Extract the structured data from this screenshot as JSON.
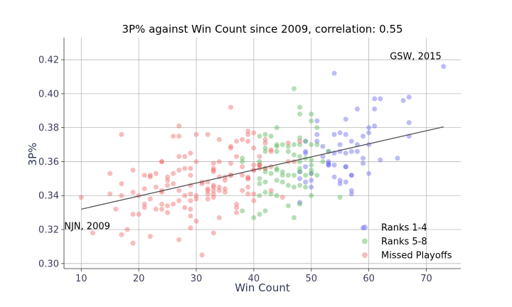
{
  "chart_data": {
    "type": "scatter",
    "title": "3P% against Win Count since 2009, correlation: 0.55",
    "xlabel": "Win Count",
    "ylabel": "3P%",
    "xlim": [
      7,
      76
    ],
    "ylim": [
      0.297,
      0.433
    ],
    "xticks": [
      10,
      20,
      30,
      40,
      50,
      60,
      70
    ],
    "yticks": [
      0.3,
      0.32,
      0.34,
      0.36,
      0.38,
      0.4,
      0.42
    ],
    "grid": true,
    "legend_position": "lower-right",
    "colors": {
      "ranks_1_4": "#6b6bf0",
      "ranks_5_8": "#5cb85c",
      "missed": "#f26b6b",
      "trend": "#555555"
    },
    "trendline": {
      "x": [
        10,
        73
      ],
      "y": [
        0.332,
        0.3805
      ]
    },
    "annotations": [
      {
        "text": "GSW, 2015",
        "x": 73,
        "y": 0.416
      },
      {
        "text": "NJN, 2009",
        "x": 10,
        "y": 0.339
      }
    ],
    "series": [
      {
        "name": "Ranks 1-4",
        "color": "#6b6bf0",
        "points": [
          [
            73,
            0.416
          ],
          [
            67,
            0.398
          ],
          [
            66,
            0.396
          ],
          [
            62,
            0.397
          ],
          [
            61,
            0.397
          ],
          [
            61,
            0.391
          ],
          [
            58,
            0.391
          ],
          [
            54,
            0.412
          ],
          [
            56,
            0.385
          ],
          [
            60,
            0.38
          ],
          [
            61,
            0.381
          ],
          [
            60,
            0.377
          ],
          [
            67,
            0.383
          ],
          [
            67,
            0.375
          ],
          [
            57,
            0.372
          ],
          [
            58,
            0.37
          ],
          [
            55,
            0.377
          ],
          [
            56,
            0.376
          ],
          [
            54,
            0.376
          ],
          [
            59,
            0.375
          ],
          [
            52,
            0.369
          ],
          [
            53,
            0.366
          ],
          [
            53,
            0.358
          ],
          [
            53,
            0.36
          ],
          [
            53,
            0.359
          ],
          [
            53,
            0.358
          ],
          [
            51,
            0.384
          ],
          [
            51,
            0.376
          ],
          [
            51,
            0.372
          ],
          [
            49,
            0.372
          ],
          [
            49,
            0.366
          ],
          [
            49,
            0.365
          ],
          [
            49,
            0.357
          ],
          [
            49,
            0.348
          ],
          [
            48,
            0.354
          ],
          [
            48,
            0.35
          ],
          [
            48,
            0.336
          ],
          [
            50,
            0.349
          ],
          [
            50,
            0.353
          ],
          [
            50,
            0.345
          ],
          [
            54,
            0.358
          ],
          [
            54,
            0.351
          ],
          [
            54,
            0.365
          ],
          [
            55,
            0.37
          ],
          [
            55,
            0.349
          ],
          [
            56,
            0.357
          ],
          [
            56,
            0.357
          ],
          [
            57,
            0.352
          ],
          [
            57,
            0.352
          ],
          [
            57,
            0.341
          ],
          [
            57,
            0.343
          ],
          [
            58,
            0.366
          ],
          [
            59,
            0.359
          ],
          [
            59,
            0.362
          ],
          [
            59,
            0.321
          ],
          [
            60,
            0.353
          ],
          [
            62,
            0.361
          ],
          [
            65,
            0.362
          ],
          [
            55,
            0.366
          ],
          [
            56,
            0.365
          ],
          [
            57,
            0.366
          ],
          [
            52,
            0.363
          ],
          [
            60,
            0.37
          ],
          [
            56,
            0.348
          ],
          [
            55,
            0.347
          ]
        ]
      },
      {
        "name": "Ranks 5-8",
        "color": "#5cb85c",
        "points": [
          [
            47,
            0.403
          ],
          [
            48,
            0.392
          ],
          [
            48,
            0.388
          ],
          [
            50,
            0.388
          ],
          [
            50,
            0.384
          ],
          [
            51,
            0.38
          ],
          [
            44,
            0.38
          ],
          [
            43,
            0.375
          ],
          [
            42,
            0.376
          ],
          [
            41,
            0.375
          ],
          [
            44,
            0.37
          ],
          [
            44,
            0.369
          ],
          [
            45,
            0.37
          ],
          [
            46,
            0.369
          ],
          [
            47,
            0.37
          ],
          [
            48,
            0.37
          ],
          [
            48,
            0.374
          ],
          [
            49,
            0.372
          ],
          [
            50,
            0.37
          ],
          [
            51,
            0.37
          ],
          [
            42,
            0.368
          ],
          [
            42,
            0.366
          ],
          [
            44,
            0.366
          ],
          [
            46,
            0.366
          ],
          [
            47,
            0.364
          ],
          [
            48,
            0.36
          ],
          [
            48,
            0.363
          ],
          [
            49,
            0.362
          ],
          [
            50,
            0.361
          ],
          [
            50,
            0.358
          ],
          [
            41,
            0.36
          ],
          [
            41,
            0.358
          ],
          [
            42,
            0.356
          ],
          [
            42,
            0.354
          ],
          [
            43,
            0.353
          ],
          [
            44,
            0.356
          ],
          [
            44,
            0.355
          ],
          [
            45,
            0.354
          ],
          [
            45,
            0.352
          ],
          [
            46,
            0.352
          ],
          [
            47,
            0.352
          ],
          [
            48,
            0.356
          ],
          [
            48,
            0.354
          ],
          [
            49,
            0.352
          ],
          [
            50,
            0.355
          ],
          [
            50,
            0.353
          ],
          [
            51,
            0.352
          ],
          [
            41,
            0.35
          ],
          [
            42,
            0.348
          ],
          [
            44,
            0.349
          ],
          [
            45,
            0.348
          ],
          [
            46,
            0.346
          ],
          [
            47,
            0.345
          ],
          [
            48,
            0.346
          ],
          [
            49,
            0.345
          ],
          [
            50,
            0.34
          ],
          [
            41,
            0.34
          ],
          [
            42,
            0.342
          ],
          [
            43,
            0.341
          ],
          [
            44,
            0.34
          ],
          [
            46,
            0.334
          ],
          [
            48,
            0.335
          ],
          [
            41,
            0.329
          ],
          [
            42,
            0.331
          ],
          [
            38,
            0.331
          ],
          [
            40,
            0.327
          ],
          [
            47,
            0.327
          ],
          [
            38,
            0.36
          ],
          [
            38,
            0.362
          ],
          [
            55,
            0.339
          ],
          [
            53,
            0.366
          ],
          [
            52,
            0.36
          ],
          [
            41,
            0.347
          ]
        ]
      },
      {
        "name": "Missed Playoffs",
        "color": "#f26b6b",
        "points": [
          [
            10,
            0.339
          ],
          [
            12,
            0.318
          ],
          [
            15,
            0.353
          ],
          [
            15,
            0.341
          ],
          [
            16,
            0.332
          ],
          [
            17,
            0.376
          ],
          [
            17,
            0.347
          ],
          [
            17,
            0.34
          ],
          [
            17,
            0.317
          ],
          [
            18,
            0.32
          ],
          [
            19,
            0.355
          ],
          [
            19,
            0.342
          ],
          [
            19,
            0.329
          ],
          [
            19,
            0.312
          ],
          [
            20,
            0.34
          ],
          [
            20,
            0.329
          ],
          [
            21,
            0.352
          ],
          [
            21,
            0.344
          ],
          [
            21,
            0.335
          ],
          [
            21,
            0.333
          ],
          [
            22,
            0.352
          ],
          [
            22,
            0.351
          ],
          [
            22,
            0.338
          ],
          [
            22,
            0.316
          ],
          [
            23,
            0.353
          ],
          [
            23,
            0.345
          ],
          [
            23,
            0.332
          ],
          [
            24,
            0.36
          ],
          [
            24,
            0.36
          ],
          [
            24,
            0.343
          ],
          [
            24,
            0.342
          ],
          [
            24,
            0.335
          ],
          [
            24,
            0.332
          ],
          [
            25,
            0.351
          ],
          [
            25,
            0.349
          ],
          [
            25,
            0.346
          ],
          [
            25,
            0.334
          ],
          [
            25,
            0.33
          ],
          [
            26,
            0.375
          ],
          [
            26,
            0.353
          ],
          [
            26,
            0.347
          ],
          [
            26,
            0.335
          ],
          [
            27,
            0.381
          ],
          [
            27,
            0.375
          ],
          [
            27,
            0.363
          ],
          [
            27,
            0.355
          ],
          [
            27,
            0.343
          ],
          [
            27,
            0.337
          ],
          [
            27,
            0.314
          ],
          [
            28,
            0.363
          ],
          [
            28,
            0.356
          ],
          [
            28,
            0.34
          ],
          [
            28,
            0.333
          ],
          [
            29,
            0.365
          ],
          [
            29,
            0.356
          ],
          [
            29,
            0.352
          ],
          [
            29,
            0.346
          ],
          [
            29,
            0.341
          ],
          [
            29,
            0.337
          ],
          [
            29,
            0.332
          ],
          [
            29,
            0.328
          ],
          [
            29,
            0.321
          ],
          [
            30,
            0.376
          ],
          [
            30,
            0.36
          ],
          [
            30,
            0.34
          ],
          [
            30,
            0.338
          ],
          [
            30,
            0.325
          ],
          [
            31,
            0.348
          ],
          [
            31,
            0.347
          ],
          [
            31,
            0.305
          ],
          [
            32,
            0.376
          ],
          [
            32,
            0.348
          ],
          [
            32,
            0.344
          ],
          [
            32,
            0.343
          ],
          [
            32,
            0.341
          ],
          [
            32,
            0.338
          ],
          [
            33,
            0.359
          ],
          [
            33,
            0.356
          ],
          [
            33,
            0.355
          ],
          [
            33,
            0.354
          ],
          [
            33,
            0.346
          ],
          [
            33,
            0.345
          ],
          [
            33,
            0.343
          ],
          [
            33,
            0.341
          ],
          [
            33,
            0.339
          ],
          [
            33,
            0.318
          ],
          [
            34,
            0.373
          ],
          [
            34,
            0.36
          ],
          [
            34,
            0.351
          ],
          [
            34,
            0.345
          ],
          [
            34,
            0.343
          ],
          [
            34,
            0.327
          ],
          [
            35,
            0.351
          ],
          [
            35,
            0.349
          ],
          [
            35,
            0.344
          ],
          [
            35,
            0.342
          ],
          [
            36,
            0.392
          ],
          [
            36,
            0.369
          ],
          [
            36,
            0.368
          ],
          [
            36,
            0.359
          ],
          [
            36,
            0.352
          ],
          [
            37,
            0.372
          ],
          [
            37,
            0.363
          ],
          [
            37,
            0.335
          ],
          [
            37,
            0.333
          ],
          [
            37,
            0.33
          ],
          [
            38,
            0.373
          ],
          [
            38,
            0.357
          ],
          [
            38,
            0.352
          ],
          [
            38,
            0.343
          ],
          [
            39,
            0.378
          ],
          [
            39,
            0.376
          ],
          [
            39,
            0.372
          ],
          [
            39,
            0.351
          ],
          [
            39,
            0.35
          ],
          [
            39,
            0.345
          ],
          [
            39,
            0.341
          ],
          [
            40,
            0.377
          ],
          [
            40,
            0.368
          ],
          [
            40,
            0.358
          ],
          [
            40,
            0.355
          ],
          [
            40,
            0.341
          ],
          [
            40,
            0.337
          ],
          [
            41,
            0.363
          ],
          [
            41,
            0.358
          ],
          [
            41,
            0.358
          ],
          [
            41,
            0.356
          ],
          [
            42,
            0.373
          ],
          [
            42,
            0.371
          ],
          [
            42,
            0.356
          ],
          [
            43,
            0.367
          ],
          [
            43,
            0.366
          ],
          [
            43,
            0.357
          ],
          [
            43,
            0.343
          ],
          [
            45,
            0.339
          ],
          [
            46,
            0.36
          ],
          [
            46,
            0.371
          ],
          [
            47,
            0.36
          ],
          [
            48,
            0.372
          ],
          [
            36,
            0.352
          ],
          [
            39,
            0.35
          ],
          [
            40,
            0.355
          ]
        ]
      }
    ]
  }
}
